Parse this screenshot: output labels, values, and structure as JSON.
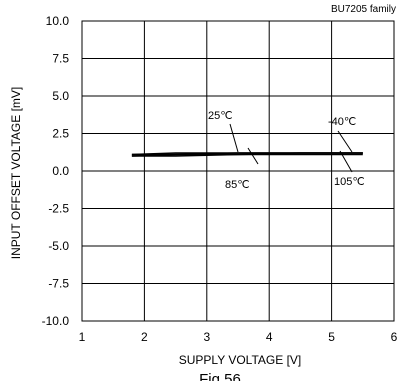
{
  "chart_data": {
    "type": "line",
    "family_label": "BU7205 family",
    "xlabel": "SUPPLY VOLTAGE [V]",
    "ylabel": "INPUT OFFSET VOLTAGE [mV]",
    "xlim": [
      1,
      6
    ],
    "ylim": [
      -10,
      10
    ],
    "x_ticks": [
      "1",
      "2",
      "3",
      "4",
      "5",
      "6"
    ],
    "y_ticks": [
      "10.0",
      "7.5",
      "5.0",
      "2.5",
      "0.0",
      "-2.5",
      "-5.0",
      "-7.5",
      "-10.0"
    ],
    "grid": true,
    "legend": "none",
    "series": [
      {
        "name": "-40℃",
        "color": "#000000",
        "x": [
          1.8,
          2.5,
          3.5,
          4.5,
          5.5
        ],
        "y": [
          1.1,
          1.2,
          1.2,
          1.2,
          1.2
        ]
      },
      {
        "name": "25℃",
        "color": "#000000",
        "x": [
          1.8,
          2.5,
          3.5,
          4.5,
          5.5
        ],
        "y": [
          1.1,
          1.1,
          1.2,
          1.2,
          1.2
        ]
      },
      {
        "name": "85℃",
        "color": "#000000",
        "x": [
          1.8,
          2.5,
          3.5,
          4.5,
          5.5
        ],
        "y": [
          1.0,
          1.1,
          1.1,
          1.2,
          1.2
        ]
      },
      {
        "name": "105℃",
        "color": "#000000",
        "x": [
          1.8,
          2.5,
          3.5,
          4.5,
          5.5
        ],
        "y": [
          1.0,
          1.0,
          1.1,
          1.1,
          1.1
        ]
      }
    ],
    "annotations": [
      {
        "text": "25℃",
        "series": "25℃"
      },
      {
        "text": "-40℃",
        "series": "-40℃"
      },
      {
        "text": "85℃",
        "series": "85℃"
      },
      {
        "text": "105℃",
        "series": "105℃"
      }
    ],
    "figure_caption": "Fig.56"
  }
}
